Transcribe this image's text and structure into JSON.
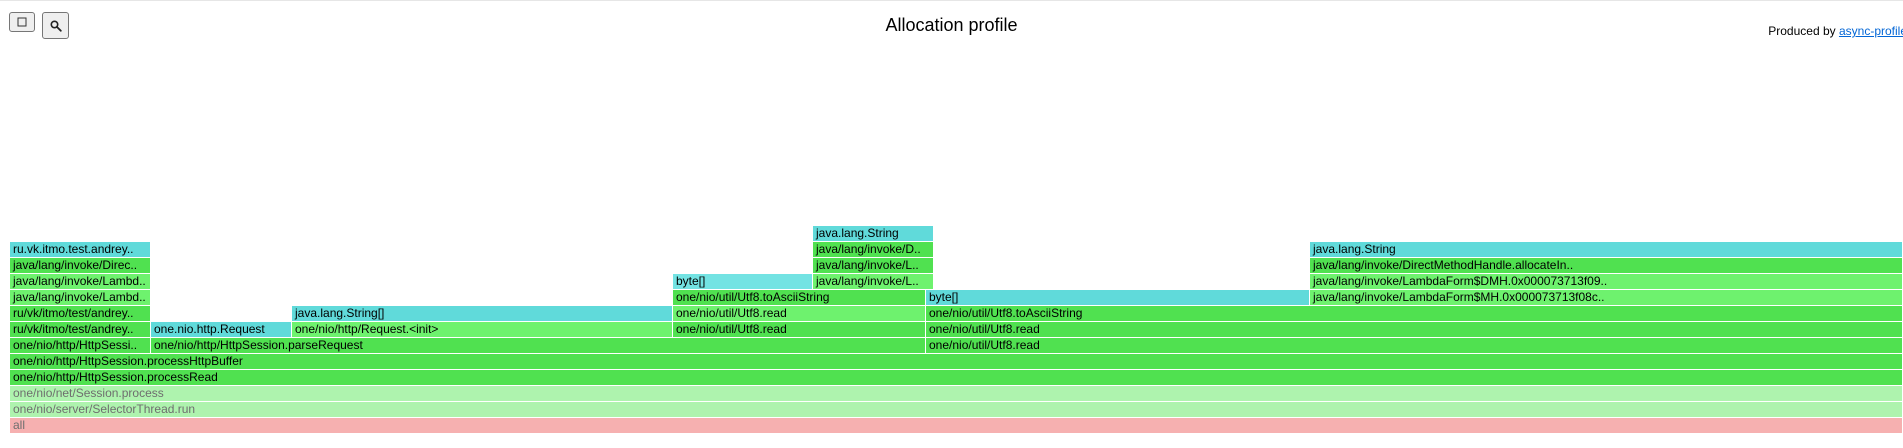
{
  "header": {
    "title": "Allocation profile",
    "produced_by_label": "Produced by ",
    "produced_by_link": "async-profiler"
  },
  "toolbar": {
    "reverse_button_icon": "reverse-icon",
    "search_button_icon": "search-icon"
  },
  "colors": {
    "java": "#50e150",
    "java_light": "#6ef26e",
    "allocation": "#60dada",
    "allocation_light": "#73e3e3",
    "native": "#aef3ae",
    "native_text": "#6e6e6e",
    "root": "#f6b0b0",
    "root_text": "#6e6e6e"
  },
  "frames": [
    {
      "name": "all",
      "level": 0,
      "start": 0,
      "end": 1,
      "kind": "root"
    },
    {
      "name": "one/nio/server/SelectorThread.run",
      "level": 1,
      "start": 0,
      "end": 1,
      "kind": "native"
    },
    {
      "name": "one/nio/net/Session.process",
      "level": 2,
      "start": 0,
      "end": 1,
      "kind": "native"
    },
    {
      "name": "one/nio/http/HttpSession.processRead",
      "level": 3,
      "start": 0,
      "end": 1,
      "kind": "java"
    },
    {
      "name": "one/nio/http/HttpSession.processHttpBuffer",
      "level": 4,
      "start": 0,
      "end": 1,
      "kind": "java"
    },
    {
      "name": "one/nio/http/HttpSessi..",
      "level": 5,
      "start": 0,
      "end": 0.0744,
      "kind": "java"
    },
    {
      "name": "one/nio/http/HttpSession.parseRequest",
      "level": 5,
      "start": 0.0744,
      "end": 0.4838,
      "kind": "java"
    },
    {
      "name": "one/nio/util/Utf8.read",
      "level": 5,
      "start": 0.4838,
      "end": 1,
      "kind": "java"
    },
    {
      "name": "ru/vk/itmo/test/andrey..",
      "level": 6,
      "start": 0,
      "end": 0.0744,
      "kind": "java"
    },
    {
      "name": "one.nio.http.Request",
      "level": 6,
      "start": 0.0744,
      "end": 0.149,
      "kind": "alloc"
    },
    {
      "name": "one/nio/http/Request.<init>",
      "level": 6,
      "start": 0.149,
      "end": 0.3502,
      "kind": "java_light"
    },
    {
      "name": "one/nio/util/Utf8.read",
      "level": 6,
      "start": 0.3502,
      "end": 0.4838,
      "kind": "java"
    },
    {
      "name": "one/nio/util/Utf8.read",
      "level": 6,
      "start": 0.4838,
      "end": 1,
      "kind": "java"
    },
    {
      "name": "ru/vk/itmo/test/andrey..",
      "level": 7,
      "start": 0,
      "end": 0.0744,
      "kind": "java"
    },
    {
      "name": "java.lang.String[]",
      "level": 7,
      "start": 0.149,
      "end": 0.3502,
      "kind": "alloc"
    },
    {
      "name": "one/nio/util/Utf8.read",
      "level": 7,
      "start": 0.3502,
      "end": 0.4838,
      "kind": "java_light"
    },
    {
      "name": "one/nio/util/Utf8.toAsciiString",
      "level": 7,
      "start": 0.4838,
      "end": 1,
      "kind": "java"
    },
    {
      "name": "java/lang/invoke/Lambd..",
      "level": 8,
      "start": 0,
      "end": 0.0744,
      "kind": "java_light"
    },
    {
      "name": "one/nio/util/Utf8.toAsciiString",
      "level": 8,
      "start": 0.3502,
      "end": 0.4838,
      "kind": "java"
    },
    {
      "name": "byte[]",
      "level": 8,
      "start": 0.4838,
      "end": 0.6866,
      "kind": "alloc"
    },
    {
      "name": "java/lang/invoke/LambdaForm$MH.0x000073713f08c..",
      "level": 8,
      "start": 0.6866,
      "end": 1,
      "kind": "java_light"
    },
    {
      "name": "java/lang/invoke/Lambd..",
      "level": 9,
      "start": 0,
      "end": 0.0744,
      "kind": "java_light"
    },
    {
      "name": "byte[]",
      "level": 9,
      "start": 0.3502,
      "end": 0.4242,
      "kind": "alloc_light"
    },
    {
      "name": "java/lang/invoke/L..",
      "level": 9,
      "start": 0.4242,
      "end": 0.4882,
      "kind": "java_light"
    },
    {
      "name": "java/lang/invoke/LambdaForm$DMH.0x000073713f09..",
      "level": 9,
      "start": 0.6866,
      "end": 1,
      "kind": "java_light"
    },
    {
      "name": "java/lang/invoke/Direc..",
      "level": 10,
      "start": 0,
      "end": 0.0744,
      "kind": "java"
    },
    {
      "name": "java/lang/invoke/L..",
      "level": 10,
      "start": 0.4242,
      "end": 0.4882,
      "kind": "java"
    },
    {
      "name": "java/lang/invoke/DirectMethodHandle.allocateIn..",
      "level": 10,
      "start": 0.6866,
      "end": 1,
      "kind": "java"
    },
    {
      "name": "ru.vk.itmo.test.andrey..",
      "level": 11,
      "start": 0,
      "end": 0.0744,
      "kind": "alloc"
    },
    {
      "name": "java/lang/invoke/D..",
      "level": 11,
      "start": 0.4242,
      "end": 0.4882,
      "kind": "java"
    },
    {
      "name": "java.lang.String",
      "level": 11,
      "start": 0.6866,
      "end": 1,
      "kind": "alloc"
    },
    {
      "name": "java.lang.String",
      "level": 12,
      "start": 0.4242,
      "end": 0.4882,
      "kind": "alloc"
    }
  ]
}
